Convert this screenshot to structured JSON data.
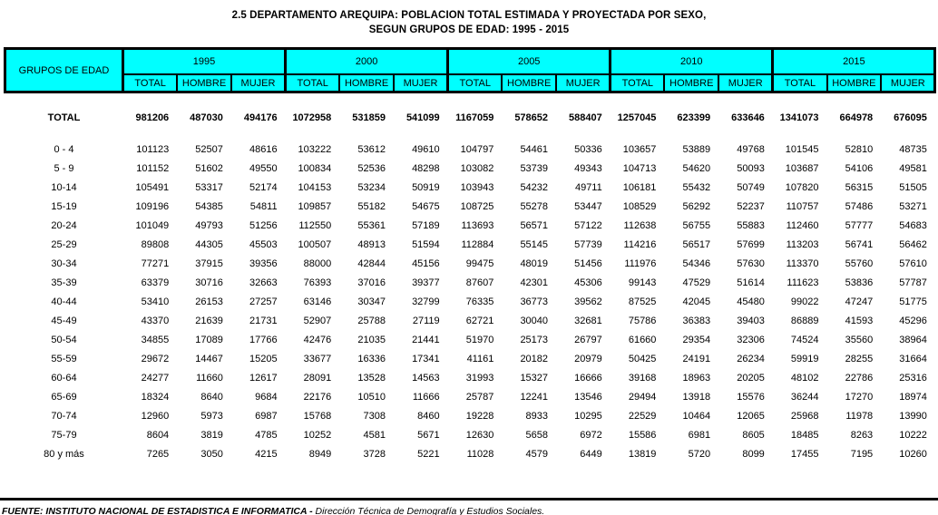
{
  "title": {
    "line1": "2.5  DEPARTAMENTO AREQUIPA: POBLACION TOTAL ESTIMADA Y PROYECTADA POR SEXO,",
    "line2": "SEGUN GRUPOS DE EDAD: 1995 - 2015"
  },
  "colors": {
    "header_bg": "#00ffff",
    "border": "#000000",
    "page_bg": "#ffffff"
  },
  "header": {
    "row_label": "GRUPOS DE EDAD",
    "years": [
      "1995",
      "2000",
      "2005",
      "2010",
      "2015"
    ],
    "sub_columns": [
      "TOTAL",
      "HOMBRE",
      "MUJER"
    ]
  },
  "total_row": {
    "label": "TOTAL",
    "values": [
      981206,
      487030,
      494176,
      1072958,
      531859,
      541099,
      1167059,
      578652,
      588407,
      1257045,
      623399,
      633646,
      1341073,
      664978,
      676095
    ]
  },
  "rows": [
    {
      "label": "0 - 4",
      "values": [
        101123,
        52507,
        48616,
        103222,
        53612,
        49610,
        104797,
        54461,
        50336,
        103657,
        53889,
        49768,
        101545,
        52810,
        48735
      ]
    },
    {
      "label": "5 - 9",
      "values": [
        101152,
        51602,
        49550,
        100834,
        52536,
        48298,
        103082,
        53739,
        49343,
        104713,
        54620,
        50093,
        103687,
        54106,
        49581
      ]
    },
    {
      "label": "10-14",
      "values": [
        105491,
        53317,
        52174,
        104153,
        53234,
        50919,
        103943,
        54232,
        49711,
        106181,
        55432,
        50749,
        107820,
        56315,
        51505
      ]
    },
    {
      "label": "15-19",
      "values": [
        109196,
        54385,
        54811,
        109857,
        55182,
        54675,
        108725,
        55278,
        53447,
        108529,
        56292,
        52237,
        110757,
        57486,
        53271
      ]
    },
    {
      "label": "20-24",
      "values": [
        101049,
        49793,
        51256,
        112550,
        55361,
        57189,
        113693,
        56571,
        57122,
        112638,
        56755,
        55883,
        112460,
        57777,
        54683
      ]
    },
    {
      "label": "25-29",
      "values": [
        89808,
        44305,
        45503,
        100507,
        48913,
        51594,
        112884,
        55145,
        57739,
        114216,
        56517,
        57699,
        113203,
        56741,
        56462
      ]
    },
    {
      "label": "30-34",
      "values": [
        77271,
        37915,
        39356,
        88000,
        42844,
        45156,
        99475,
        48019,
        51456,
        111976,
        54346,
        57630,
        113370,
        55760,
        57610
      ]
    },
    {
      "label": "35-39",
      "values": [
        63379,
        30716,
        32663,
        76393,
        37016,
        39377,
        87607,
        42301,
        45306,
        99143,
        47529,
        51614,
        111623,
        53836,
        57787
      ]
    },
    {
      "label": "40-44",
      "values": [
        53410,
        26153,
        27257,
        63146,
        30347,
        32799,
        76335,
        36773,
        39562,
        87525,
        42045,
        45480,
        99022,
        47247,
        51775
      ]
    },
    {
      "label": "45-49",
      "values": [
        43370,
        21639,
        21731,
        52907,
        25788,
        27119,
        62721,
        30040,
        32681,
        75786,
        36383,
        39403,
        86889,
        41593,
        45296
      ]
    },
    {
      "label": "50-54",
      "values": [
        34855,
        17089,
        17766,
        42476,
        21035,
        21441,
        51970,
        25173,
        26797,
        61660,
        29354,
        32306,
        74524,
        35560,
        38964
      ]
    },
    {
      "label": "55-59",
      "values": [
        29672,
        14467,
        15205,
        33677,
        16336,
        17341,
        41161,
        20182,
        20979,
        50425,
        24191,
        26234,
        59919,
        28255,
        31664
      ]
    },
    {
      "label": "60-64",
      "values": [
        24277,
        11660,
        12617,
        28091,
        13528,
        14563,
        31993,
        15327,
        16666,
        39168,
        18963,
        20205,
        48102,
        22786,
        25316
      ]
    },
    {
      "label": "65-69",
      "values": [
        18324,
        8640,
        9684,
        22176,
        10510,
        11666,
        25787,
        12241,
        13546,
        29494,
        13918,
        15576,
        36244,
        17270,
        18974
      ]
    },
    {
      "label": "70-74",
      "values": [
        12960,
        5973,
        6987,
        15768,
        7308,
        8460,
        19228,
        8933,
        10295,
        22529,
        10464,
        12065,
        25968,
        11978,
        13990
      ]
    },
    {
      "label": "75-79",
      "values": [
        8604,
        3819,
        4785,
        10252,
        4581,
        5671,
        12630,
        5658,
        6972,
        15586,
        6981,
        8605,
        18485,
        8263,
        10222
      ]
    },
    {
      "label": "80 y más",
      "values": [
        7265,
        3050,
        4215,
        8949,
        3728,
        5221,
        11028,
        4579,
        6449,
        13819,
        5720,
        8099,
        17455,
        7195,
        10260
      ]
    }
  ],
  "footer": {
    "source_main": "FUENTE: INSTITUTO NACIONAL DE ESTADISTICA E INFORMATICA - ",
    "source_detail": "Dirección Técnica de Demografía y Estudios Sociales."
  }
}
